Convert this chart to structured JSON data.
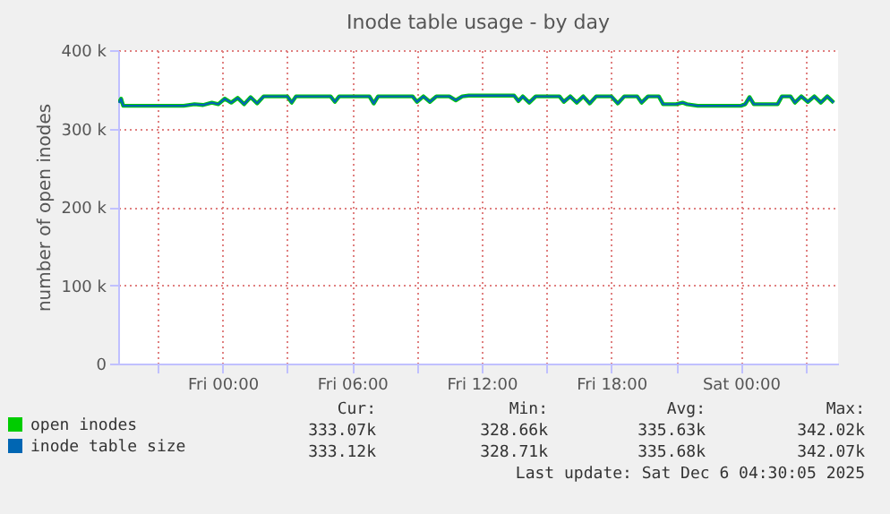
{
  "chart_data": {
    "type": "line",
    "title": "Inode table usage - by day",
    "ylabel": "number of open inodes",
    "x": [
      "2025-12-04T19:12",
      "2025-12-04T19:18",
      "2025-12-04T19:24",
      "2025-12-04T22:12",
      "2025-12-04T22:42",
      "2025-12-04T23:06",
      "2025-12-04T23:30",
      "2025-12-04T23:48",
      "2025-12-05T00:06",
      "2025-12-05T00:24",
      "2025-12-05T00:42",
      "2025-12-05T01:00",
      "2025-12-05T01:18",
      "2025-12-05T01:36",
      "2025-12-05T01:54",
      "2025-12-05T02:30",
      "2025-12-05T03:00",
      "2025-12-05T03:12",
      "2025-12-05T03:24",
      "2025-12-05T05:00",
      "2025-12-05T05:12",
      "2025-12-05T05:24",
      "2025-12-05T06:48",
      "2025-12-05T07:00",
      "2025-12-05T07:12",
      "2025-12-05T08:48",
      "2025-12-05T09:00",
      "2025-12-05T09:18",
      "2025-12-05T09:36",
      "2025-12-05T09:54",
      "2025-12-05T10:30",
      "2025-12-05T10:48",
      "2025-12-05T11:06",
      "2025-12-05T11:24",
      "2025-12-05T13:30",
      "2025-12-05T13:42",
      "2025-12-05T13:54",
      "2025-12-05T14:12",
      "2025-12-05T14:30",
      "2025-12-05T15:36",
      "2025-12-05T15:48",
      "2025-12-05T16:06",
      "2025-12-05T16:24",
      "2025-12-05T16:42",
      "2025-12-05T17:00",
      "2025-12-05T17:18",
      "2025-12-05T18:00",
      "2025-12-05T18:18",
      "2025-12-05T18:36",
      "2025-12-05T19:12",
      "2025-12-05T19:24",
      "2025-12-05T19:42",
      "2025-12-05T20:12",
      "2025-12-05T20:24",
      "2025-12-05T21:00",
      "2025-12-05T21:18",
      "2025-12-05T21:30",
      "2025-12-05T22:00",
      "2025-12-06T00:00",
      "2025-12-06T00:12",
      "2025-12-06T00:24",
      "2025-12-06T00:36",
      "2025-12-06T01:42",
      "2025-12-06T01:54",
      "2025-12-06T02:18",
      "2025-12-06T02:30",
      "2025-12-06T02:48",
      "2025-12-06T03:06",
      "2025-12-06T03:24",
      "2025-12-06T03:42",
      "2025-12-06T04:00",
      "2025-12-06T04:18"
    ],
    "series": [
      {
        "name": "open inodes",
        "color": "#00cc00",
        "values": [
          333000,
          338000,
          329000,
          329000,
          331000,
          330000,
          333000,
          331000,
          338000,
          333000,
          339000,
          331000,
          340000,
          332000,
          341000,
          341000,
          341000,
          333000,
          341000,
          341000,
          334000,
          341000,
          341000,
          332000,
          341000,
          341000,
          334000,
          341000,
          334000,
          341000,
          341000,
          336000,
          341000,
          342000,
          342000,
          335000,
          341000,
          333000,
          341000,
          341000,
          334000,
          341000,
          333000,
          341000,
          332000,
          341000,
          341000,
          332000,
          341000,
          341000,
          333000,
          341000,
          341000,
          331000,
          331000,
          333000,
          331000,
          329000,
          329000,
          331000,
          340000,
          331000,
          331000,
          341000,
          341000,
          333000,
          341000,
          334000,
          341000,
          333000,
          341000,
          333000
        ]
      },
      {
        "name": "inode table size",
        "color": "#0066b3",
        "values": [
          333000,
          338000,
          329000,
          329000,
          331000,
          330000,
          333000,
          331000,
          338000,
          333000,
          339000,
          331000,
          340000,
          332000,
          341000,
          341000,
          341000,
          333000,
          341000,
          341000,
          334000,
          341000,
          341000,
          332000,
          341000,
          341000,
          334000,
          341000,
          334000,
          341000,
          341000,
          336000,
          341000,
          342000,
          342000,
          335000,
          341000,
          333000,
          341000,
          341000,
          334000,
          341000,
          333000,
          341000,
          332000,
          341000,
          341000,
          332000,
          341000,
          341000,
          333000,
          341000,
          341000,
          331000,
          331000,
          333000,
          331000,
          329000,
          329000,
          331000,
          340000,
          331000,
          331000,
          341000,
          341000,
          333000,
          341000,
          334000,
          341000,
          333000,
          341000,
          333000
        ]
      }
    ],
    "xlim": [
      "2025-12-04T19:10",
      "2025-12-06T04:30"
    ],
    "xticks": [
      {
        "value": "2025-12-04T21:00",
        "label": null
      },
      {
        "value": "2025-12-05T00:00",
        "label": "Fri 00:00"
      },
      {
        "value": "2025-12-05T03:00",
        "label": null
      },
      {
        "value": "2025-12-05T06:00",
        "label": "Fri 06:00"
      },
      {
        "value": "2025-12-05T09:00",
        "label": null
      },
      {
        "value": "2025-12-05T12:00",
        "label": "Fri 12:00"
      },
      {
        "value": "2025-12-05T15:00",
        "label": null
      },
      {
        "value": "2025-12-05T18:00",
        "label": "Fri 18:00"
      },
      {
        "value": "2025-12-05T21:00",
        "label": null
      },
      {
        "value": "2025-12-06T00:00",
        "label": "Sat 00:00"
      },
      {
        "value": "2025-12-06T03:00",
        "label": null
      }
    ],
    "ylim": [
      0,
      400000
    ],
    "yticks": [
      0,
      {
        "value": 100000,
        "label": "100 k"
      },
      {
        "value": 200000,
        "label": "200 k"
      },
      {
        "value": 300000,
        "label": "300 k"
      },
      {
        "value": 400000,
        "label": "400 k"
      }
    ],
    "grid": true,
    "legend": "bottom left",
    "marker": "none",
    "line_style": "solid",
    "annotations": [
      "Cur:",
      "Min:",
      "Avg:",
      "Max:",
      "333.07k",
      "328.66k",
      "335.63k",
      "342.02k",
      "333.12k",
      "328.71k",
      "335.68k",
      "342.07k",
      "Last update: Sat Dec  6 04:30:05 2025"
    ]
  }
}
